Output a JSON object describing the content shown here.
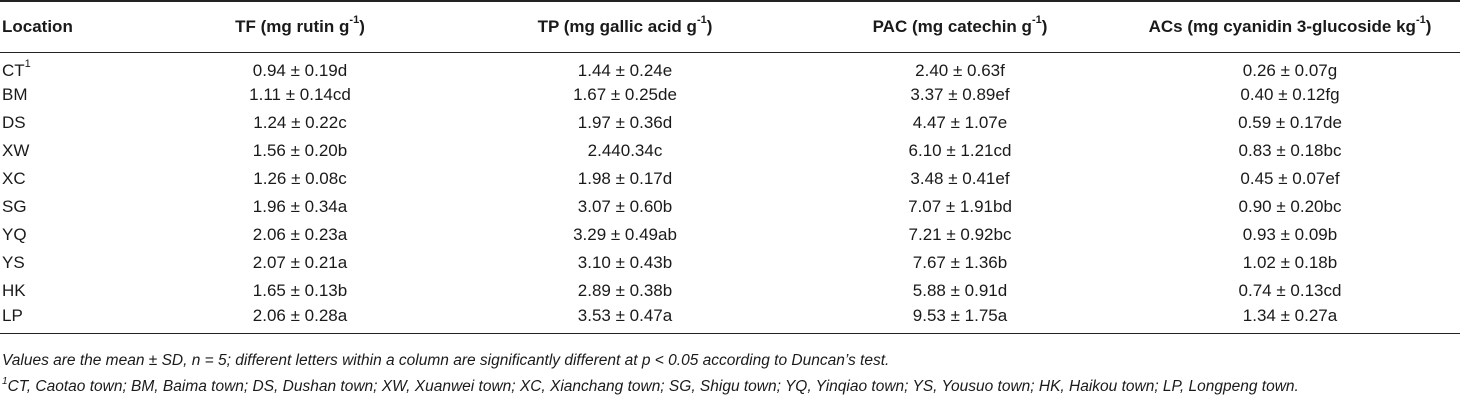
{
  "table": {
    "headers": {
      "location": "Location",
      "tf": {
        "text": "TF (mg rutin g",
        "sup": "-1",
        "after": ")"
      },
      "tp": {
        "text": "TP (mg gallic acid g",
        "sup": "-1",
        "after": ")"
      },
      "pac": {
        "text": "PAC (mg catechin g",
        "sup": "-1",
        "after": ")"
      },
      "acs": {
        "text": "ACs (mg cyanidin 3-glucoside kg",
        "sup": "-1",
        "after": ")"
      }
    },
    "rows": [
      {
        "location": "CT",
        "location_sup": "1",
        "tf": "0.94 ± 0.19d",
        "tp": "1.44 ± 0.24e",
        "pac": "2.40 ± 0.63f",
        "acs": "0.26 ± 0.07g"
      },
      {
        "location": "BM",
        "location_sup": "",
        "tf": "1.11 ± 0.14cd",
        "tp": "1.67 ± 0.25de",
        "pac": "3.37 ± 0.89ef",
        "acs": "0.40 ± 0.12fg"
      },
      {
        "location": "DS",
        "location_sup": "",
        "tf": "1.24 ± 0.22c",
        "tp": "1.97 ± 0.36d",
        "pac": "4.47 ± 1.07e",
        "acs": "0.59 ± 0.17de"
      },
      {
        "location": "XW",
        "location_sup": "",
        "tf": "1.56 ± 0.20b",
        "tp": "2.440.34c",
        "pac": "6.10 ± 1.21cd",
        "acs": "0.83 ± 0.18bc"
      },
      {
        "location": "XC",
        "location_sup": "",
        "tf": "1.26 ± 0.08c",
        "tp": "1.98 ± 0.17d",
        "pac": "3.48 ± 0.41ef",
        "acs": "0.45 ± 0.07ef"
      },
      {
        "location": "SG",
        "location_sup": "",
        "tf": "1.96 ± 0.34a",
        "tp": "3.07 ± 0.60b",
        "pac": "7.07 ± 1.91bd",
        "acs": "0.90 ± 0.20bc"
      },
      {
        "location": "YQ",
        "location_sup": "",
        "tf": "2.06 ± 0.23a",
        "tp": "3.29 ± 0.49ab",
        "pac": "7.21 ± 0.92bc",
        "acs": "0.93 ± 0.09b"
      },
      {
        "location": "YS",
        "location_sup": "",
        "tf": "2.07 ± 0.21a",
        "tp": "3.10 ± 0.43b",
        "pac": "7.67 ± 1.36b",
        "acs": "1.02 ± 0.18b"
      },
      {
        "location": "HK",
        "location_sup": "",
        "tf": "1.65 ± 0.13b",
        "tp": "2.89 ± 0.38b",
        "pac": "5.88 ± 0.91d",
        "acs": "0.74 ± 0.13cd"
      },
      {
        "location": "LP",
        "location_sup": "",
        "tf": "2.06 ± 0.28a",
        "tp": "3.53 ± 0.47a",
        "pac": "9.53 ± 1.75a",
        "acs": "1.34 ± 0.27a"
      }
    ]
  },
  "footnotes": {
    "note1": "Values are the mean ± SD, n = 5; different letters within a column are significantly different at p < 0.05 according to Duncan’s test.",
    "note2_sup": "1",
    "note2": "CT, Caotao town; BM, Baima town; DS, Dushan town; XW, Xuanwei town; XC, Xianchang town; SG, Shigu town; YQ, Yinqiao town; YS, Yousuo town; HK, Haikou town; LP, Longpeng town."
  }
}
